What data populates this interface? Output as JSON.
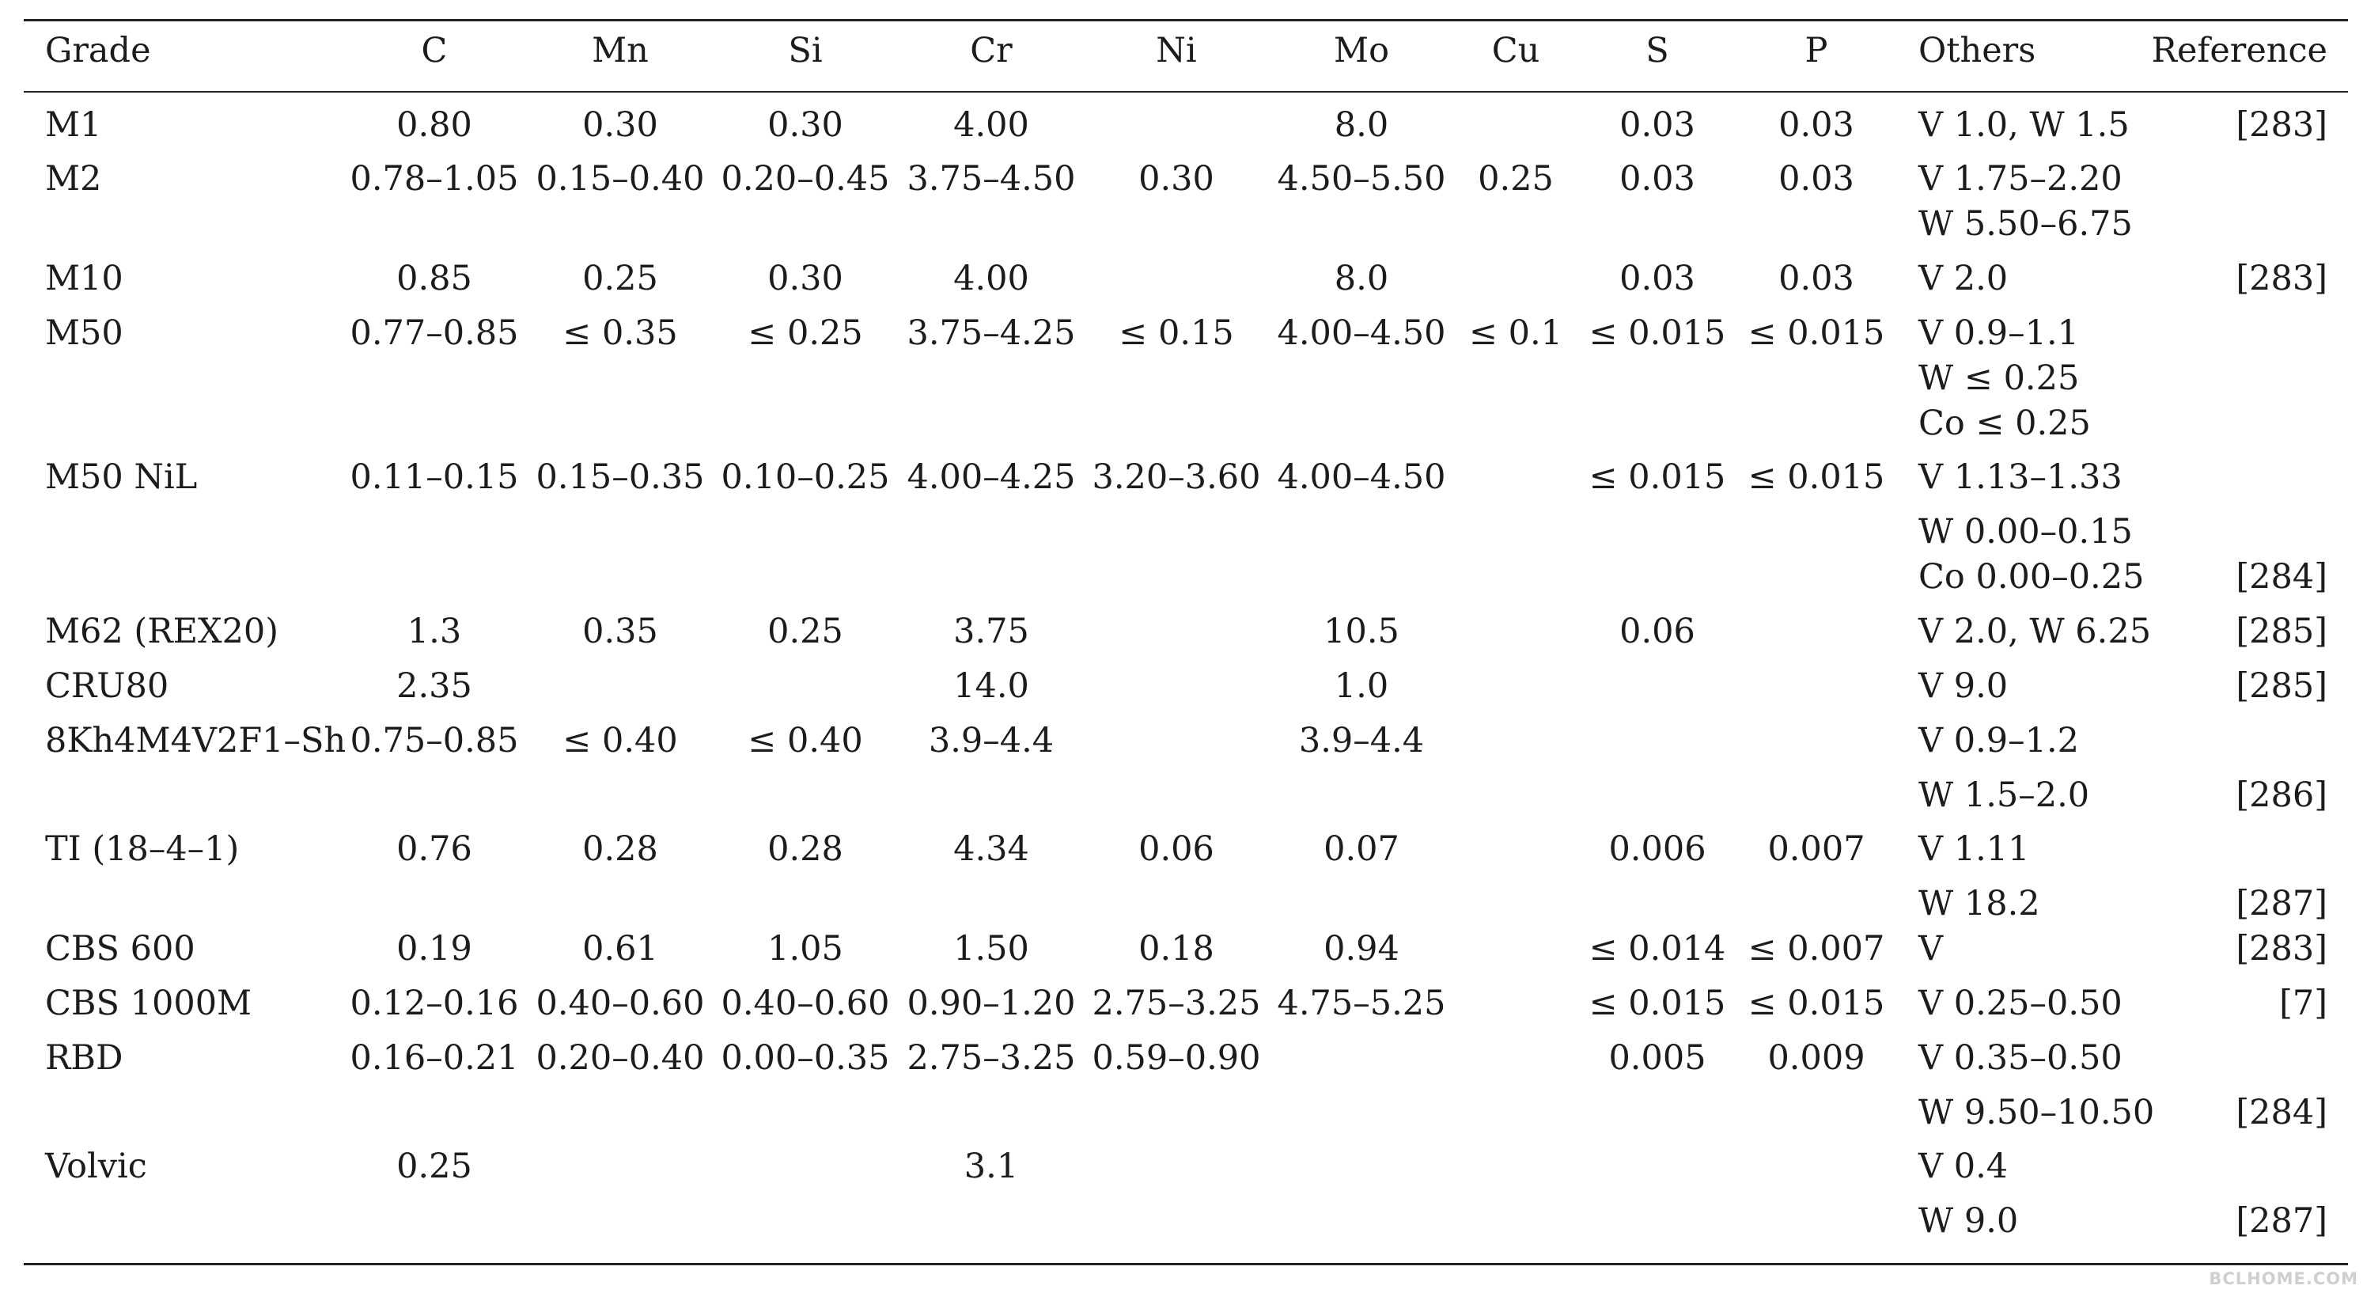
{
  "headers": [
    "Grade",
    "C",
    "Mn",
    "Si",
    "Cr",
    "Ni",
    "Mo",
    "Cu",
    "S",
    "P",
    "Others",
    "Reference"
  ],
  "rows": [
    {
      "grade": "M1",
      "C": "0.80",
      "Mn": "0.30",
      "Si": "0.30",
      "Cr": "4.00",
      "Ni": "",
      "Mo": "8.0",
      "Cu": "",
      "S": "0.03",
      "P": "0.03",
      "others": [
        "V 1.0, W 1.5"
      ],
      "ref": "[283]"
    },
    {
      "grade": "M2",
      "C": "0.78–1.05",
      "Mn": "0.15–0.40",
      "Si": "0.20–0.45",
      "Cr": "3.75–4.50",
      "Ni": "0.30",
      "Mo": "4.50–5.50",
      "Cu": "0.25",
      "S": "0.03",
      "P": "0.03",
      "others": [
        "V 1.75–2.20",
        "W 5.50–6.75"
      ],
      "ref": ""
    },
    {
      "grade": "M10",
      "C": "0.85",
      "Mn": "0.25",
      "Si": "0.30",
      "Cr": "4.00",
      "Ni": "",
      "Mo": "8.0",
      "Cu": "",
      "S": "0.03",
      "P": "0.03",
      "others": [
        "V 2.0"
      ],
      "ref": "[283]"
    },
    {
      "grade": "M50",
      "C": "0.77–0.85",
      "Mn": "≤ 0.35",
      "Si": "≤ 0.25",
      "Cr": "3.75–4.25",
      "Ni": "≤ 0.15",
      "Mo": "4.00–4.50",
      "Cu": "≤ 0.1",
      "S": "≤ 0.015",
      "P": "≤ 0.015",
      "others": [
        "V 0.9–1.1",
        "W ≤ 0.25",
        "Co ≤ 0.25"
      ],
      "ref": ""
    },
    {
      "grade": "M50 NiL",
      "C": "0.11–0.15",
      "Mn": "0.15–0.35",
      "Si": "0.10–0.25",
      "Cr": "4.00–4.25",
      "Ni": "3.20–3.60",
      "Mo": "4.00–4.50",
      "Cu": "",
      "S": "≤ 0.015",
      "P": "≤ 0.015",
      "others": [
        "V 1.13–1.33",
        "W 0.00–0.15",
        "Co 0.00–0.25"
      ],
      "ref": "[284]"
    },
    {
      "grade": "M62 (REX20)",
      "C": "1.3",
      "Mn": "0.35",
      "Si": "0.25",
      "Cr": "3.75",
      "Ni": "",
      "Mo": "10.5",
      "Cu": "",
      "S": "0.06",
      "P": "",
      "others": [
        "V 2.0, W 6.25"
      ],
      "ref": "[285]"
    },
    {
      "grade": "CRU80",
      "C": "2.35",
      "Mn": "",
      "Si": "",
      "Cr": "14.0",
      "Ni": "",
      "Mo": "1.0",
      "Cu": "",
      "S": "",
      "P": "",
      "others": [
        "V 9.0"
      ],
      "ref": "[285]"
    },
    {
      "grade": "8Kh4M4V2F1–Sh",
      "C": "0.75–0.85",
      "Mn": "≤ 0.40",
      "Si": "≤ 0.40",
      "Cr": "3.9–4.4",
      "Ni": "",
      "Mo": "3.9–4.4",
      "Cu": "",
      "S": "",
      "P": "",
      "others": [
        "V 0.9–1.2",
        "W 1.5–2.0"
      ],
      "ref": "[286]"
    },
    {
      "grade": "TI (18–4–1)",
      "C": "0.76",
      "Mn": "0.28",
      "Si": "0.28",
      "Cr": "4.34",
      "Ni": "0.06",
      "Mo": "0.07",
      "Cu": "",
      "S": "0.006",
      "P": "0.007",
      "others": [
        "V 1.11",
        "W 18.2"
      ],
      "ref": "[287]"
    },
    {
      "grade": "CBS 600",
      "C": "0.19",
      "Mn": "0.61",
      "Si": "1.05",
      "Cr": "1.50",
      "Ni": "0.18",
      "Mo": "0.94",
      "Cu": "",
      "S": "≤ 0.014",
      "P": "≤ 0.007",
      "others": [
        "V"
      ],
      "ref": "[283]"
    },
    {
      "grade": "CBS 1000M",
      "C": "0.12–0.16",
      "Mn": "0.40–0.60",
      "Si": "0.40–0.60",
      "Cr": "0.90–1.20",
      "Ni": "2.75–3.25",
      "Mo": "4.75–5.25",
      "Cu": "",
      "S": "≤ 0.015",
      "P": "≤ 0.015",
      "others": [
        "V 0.25–0.50"
      ],
      "ref": "[7]"
    },
    {
      "grade": "RBD",
      "C": "0.16–0.21",
      "Mn": "0.20–0.40",
      "Si": "0.00–0.35",
      "Cr": "2.75–3.25",
      "Ni": "0.59–0.90",
      "Mo": "",
      "Cu": "",
      "S": "0.005",
      "P": "0.009",
      "others": [
        "V 0.35–0.50",
        "W 9.50–10.50"
      ],
      "ref": "[284]"
    },
    {
      "grade": "Volvic",
      "C": "0.25",
      "Mn": "",
      "Si": "",
      "Cr": "3.1",
      "Ni": "",
      "Mo": "",
      "Cu": "",
      "S": "",
      "P": "",
      "others": [
        "V 0.4",
        "W 9.0"
      ],
      "ref": "[287]"
    }
  ],
  "watermark": "BCLHOME.COM"
}
